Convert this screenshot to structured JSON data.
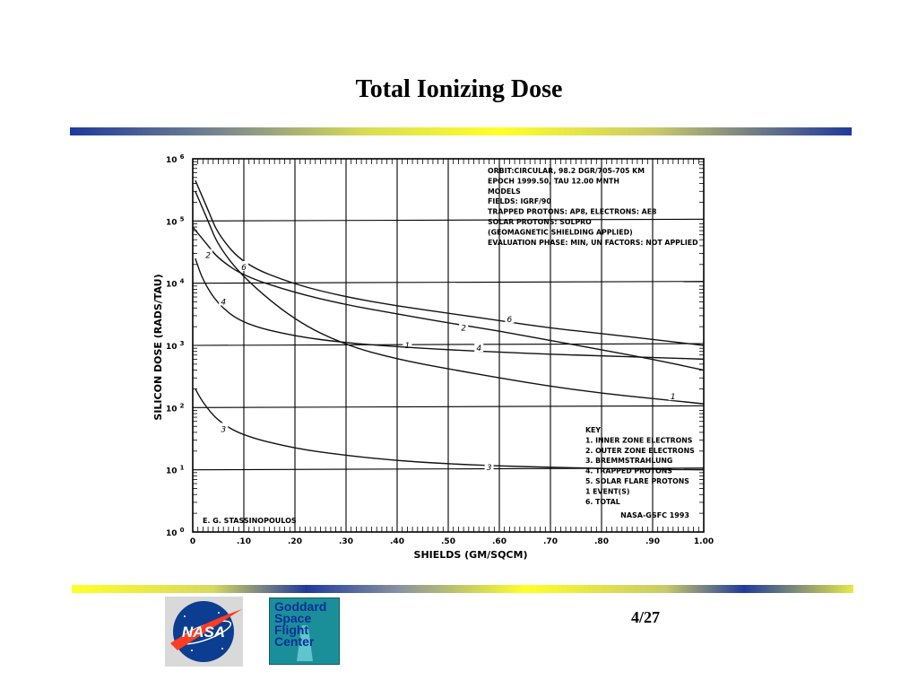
{
  "slide": {
    "title": "Total Ionizing Dose",
    "page_number": "4/27",
    "accent_colors": [
      "#1f3a9c",
      "#ffff2a",
      "#7d8a8e"
    ]
  },
  "logos": {
    "nasa": {
      "text": "NASA",
      "icon": "nasa-meatball-icon"
    },
    "gsfc": {
      "text": "Goddard\nSpace\nFlight\nCenter",
      "icon": "gsfc-logo-icon"
    }
  },
  "chart_data": {
    "type": "line",
    "xlabel": "SHIELDS (GM/SQCM)",
    "ylabel": "SILICON DOSE (RADS/TAU)",
    "x_ticks": [
      "0",
      ".10",
      ".20",
      ".30",
      ".40",
      ".50",
      ".60",
      ".70",
      ".80",
      ".90",
      "1.00"
    ],
    "y_ticks": [
      {
        "base": "10",
        "exp": "0"
      },
      {
        "base": "10",
        "exp": "1"
      },
      {
        "base": "10",
        "exp": "2"
      },
      {
        "base": "10",
        "exp": "3"
      },
      {
        "base": "10",
        "exp": "4"
      },
      {
        "base": "10",
        "exp": "5"
      },
      {
        "base": "10",
        "exp": "6"
      }
    ],
    "xlim": [
      0,
      1.0
    ],
    "ylim": [
      1,
      1000000
    ],
    "y_scale": "log",
    "grid": true,
    "info_lines": [
      "ORBIT:CIRCULAR, 98.2 DGR/705-705 KM",
      "EPOCH 1999.50,  TAU 12.00 MNTH",
      "MODELS",
      "   FIELDS: IGRF/90",
      "   TRAPPED PROTONS: AP8,    ELECTRONS: AE8",
      "   SOLAR PROTONS: SOLPRO",
      "      (GEOMAGNETIC SHIELDING APPLIED)",
      "EVALUATION PHASE: MIN,  UN FACTORS: NOT APPLIED"
    ],
    "key_lines": [
      "KEY",
      "1. INNER ZONE ELECTRONS",
      "2. OUTER ZONE ELECTRONS",
      "3. BREMMSTRAHLUNG",
      "4. TRAPPED PROTONS",
      "5. SOLAR FLARE PROTONS",
      "      1  EVENT(S)",
      "6. TOTAL"
    ],
    "author": "E. G. STASSINOPOULOS",
    "credit": "NASA-GSFC 1993",
    "series": [
      {
        "name": "1",
        "label_at": [
          0.42,
          1000,
          0.94,
          150
        ],
        "x": [
          0.005,
          0.03,
          0.05,
          0.1,
          0.2,
          0.3,
          0.4,
          0.5,
          0.6,
          0.7,
          0.8,
          0.9,
          1.0
        ],
        "y": [
          300000,
          100000,
          40000,
          12000,
          2500,
          1000,
          600,
          420,
          300,
          220,
          170,
          140,
          115
        ]
      },
      {
        "name": "2",
        "label_at": [
          0.03,
          28000,
          0.53,
          1900
        ],
        "x": [
          0.0,
          0.03,
          0.05,
          0.1,
          0.2,
          0.3,
          0.4,
          0.5,
          0.6,
          0.7,
          0.8,
          0.9,
          1.0
        ],
        "y": [
          80000,
          40000,
          25000,
          13000,
          7000,
          4500,
          3200,
          2300,
          1700,
          1200,
          850,
          600,
          400
        ]
      },
      {
        "name": "3",
        "label_at": [
          0.06,
          45,
          0.58,
          11
        ],
        "x": [
          0.005,
          0.02,
          0.05,
          0.1,
          0.2,
          0.3,
          0.4,
          0.5,
          0.6,
          0.7,
          0.8,
          0.9,
          1.0
        ],
        "y": [
          200,
          120,
          60,
          35,
          22,
          17,
          14,
          12.5,
          11.5,
          11,
          10.5,
          10.2,
          10
        ]
      },
      {
        "name": "4",
        "label_at": [
          0.06,
          5000,
          0.56,
          900
        ],
        "x": [
          0.005,
          0.02,
          0.05,
          0.1,
          0.2,
          0.3,
          0.4,
          0.5,
          0.6,
          0.7,
          0.8,
          0.9,
          1.0
        ],
        "y": [
          25000,
          11000,
          4500,
          2200,
          1400,
          1100,
          950,
          850,
          780,
          720,
          680,
          640,
          600
        ]
      },
      {
        "name": "6",
        "label_at": [
          0.1,
          18000,
          0.62,
          2600
        ],
        "x": [
          0.005,
          0.03,
          0.05,
          0.1,
          0.2,
          0.3,
          0.4,
          0.5,
          0.6,
          0.7,
          0.8,
          0.9,
          1.0
        ],
        "y": [
          450000,
          150000,
          60000,
          20000,
          9500,
          6000,
          4300,
          3300,
          2500,
          1900,
          1550,
          1250,
          1000
        ]
      }
    ]
  }
}
